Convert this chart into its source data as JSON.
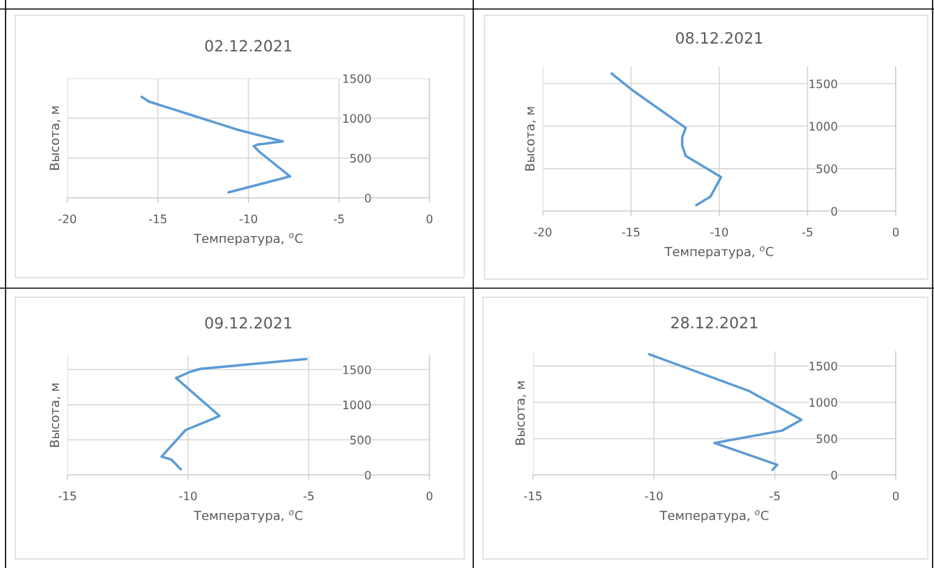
{
  "chart_data": [
    {
      "type": "line",
      "title": "02.12.2021",
      "xlabel": "Температура, $^{o}$C",
      "ylabel": "Высота, м",
      "xlim": [
        -20,
        0
      ],
      "xticks": [
        -20,
        -15,
        -10,
        -5,
        0
      ],
      "ylim": [
        0,
        1500
      ],
      "yticks": [
        0,
        500,
        1000,
        1500
      ],
      "grid": true,
      "marker": "none",
      "line_style": "solid",
      "series": [
        {
          "color": "#5b9bd5",
          "x": [
            -15.9,
            -15.5,
            -10.5,
            -8.1,
            -9.5,
            -9.7,
            -9.4,
            -7.7,
            -11.1
          ],
          "values": [
            1270,
            1210,
            850,
            710,
            670,
            650,
            580,
            270,
            70
          ]
        }
      ]
    },
    {
      "type": "line",
      "title": "08.12.2021",
      "xlabel": "Температура, $^{o}$C",
      "ylabel": "Высота, м",
      "xlim": [
        -20,
        0
      ],
      "xticks": [
        -20,
        -15,
        -10,
        -5,
        0
      ],
      "ylim": [
        0,
        1700
      ],
      "yticks": [
        0,
        500,
        1000,
        1500
      ],
      "grid": true,
      "marker": "none",
      "line_style": "solid",
      "series": [
        {
          "color": "#5b9bd5",
          "x": [
            -16.1,
            -14.9,
            -11.9,
            -12.1,
            -12.1,
            -11.9,
            -9.9,
            -10.5,
            -11.3
          ],
          "values": [
            1620,
            1420,
            980,
            870,
            770,
            650,
            400,
            170,
            70
          ]
        }
      ]
    },
    {
      "type": "line",
      "title": "09.12.2021",
      "xlabel": "Температура, $^{o}$C",
      "ylabel": "Высота, м",
      "xlim": [
        -15,
        0
      ],
      "xticks": [
        -15,
        -10,
        -5,
        0
      ],
      "ylim": [
        0,
        1700
      ],
      "yticks": [
        0,
        500,
        1000,
        1500
      ],
      "grid": true,
      "marker": "none",
      "line_style": "solid",
      "series": [
        {
          "color": "#5b9bd5",
          "x": [
            -5.1,
            -9.5,
            -9.9,
            -10.5,
            -8.7,
            -8.9,
            -10.1,
            -11.1,
            -10.7,
            -10.3
          ],
          "values": [
            1650,
            1510,
            1470,
            1380,
            840,
            810,
            640,
            260,
            220,
            80
          ]
        }
      ]
    },
    {
      "type": "line",
      "title": "28.12.2021",
      "xlabel": "Температура, $^{o}$C",
      "ylabel": "Высота, м",
      "xlim": [
        -15,
        0
      ],
      "xticks": [
        -15,
        -10,
        -5,
        0
      ],
      "ylim": [
        0,
        1700
      ],
      "yticks": [
        0,
        500,
        1000,
        1500
      ],
      "grid": true,
      "marker": "none",
      "line_style": "solid",
      "series": [
        {
          "color": "#5b9bd5",
          "x": [
            -10.2,
            -6.1,
            -3.9,
            -4.7,
            -7.5,
            -4.9,
            -5.1
          ],
          "values": [
            1660,
            1160,
            760,
            610,
            440,
            140,
            70
          ]
        }
      ]
    }
  ]
}
